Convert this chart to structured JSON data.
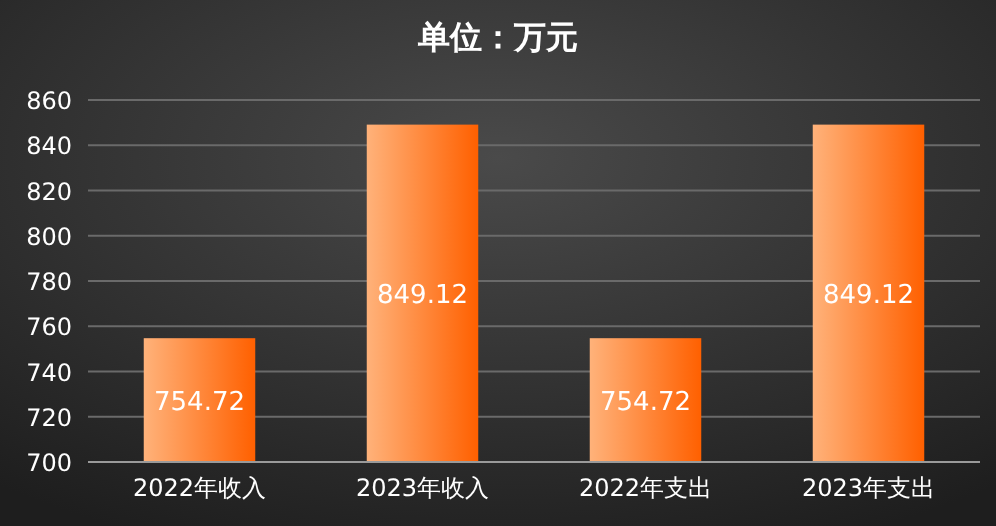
{
  "chart_data": {
    "type": "bar",
    "title": "单位：万元",
    "categories": [
      "2022年收入",
      "2023年收入",
      "2022年支出",
      "2023年支出"
    ],
    "values": [
      754.72,
      849.12,
      754.72,
      849.12
    ],
    "color": "#ff6000",
    "ylim": [
      700,
      860
    ],
    "yticks": [
      700,
      720,
      740,
      760,
      780,
      800,
      820,
      840,
      860
    ],
    "grid": "y",
    "data_labels": true
  }
}
